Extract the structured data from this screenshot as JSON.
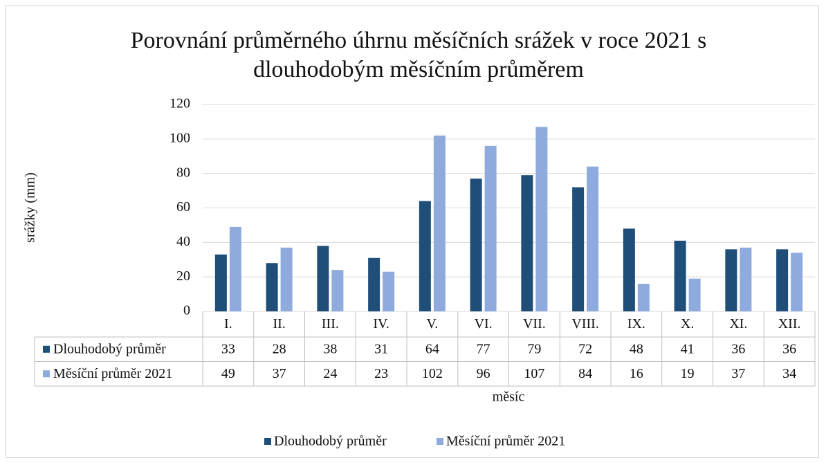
{
  "chart_data": {
    "type": "bar",
    "title": "Porovnání průměrného úhrnu měsíčních srážek v roce 2021 s dlouhodobým měsíčním průměrem",
    "x_label": "měsíc",
    "y_label": "srážky (mm)",
    "categories": [
      "I.",
      "II.",
      "III.",
      "IV.",
      "V.",
      "VI.",
      "VII.",
      "VIII.",
      "IX.",
      "X.",
      "XI.",
      "XII."
    ],
    "series": [
      {
        "name": "Dlouhodobý průměr",
        "color": "#1f4e79",
        "values": [
          33,
          28,
          38,
          31,
          64,
          77,
          79,
          72,
          48,
          41,
          36,
          36
        ]
      },
      {
        "name": "Měsíční průměr 2021",
        "color": "#8faadc",
        "values": [
          49,
          37,
          24,
          23,
          102,
          96,
          107,
          84,
          16,
          19,
          37,
          34
        ]
      }
    ],
    "ylim": [
      0,
      120
    ],
    "yticks": [
      0,
      20,
      40,
      60,
      80,
      100,
      120
    ],
    "grid": true,
    "legend": "bottom",
    "data_table": true
  }
}
